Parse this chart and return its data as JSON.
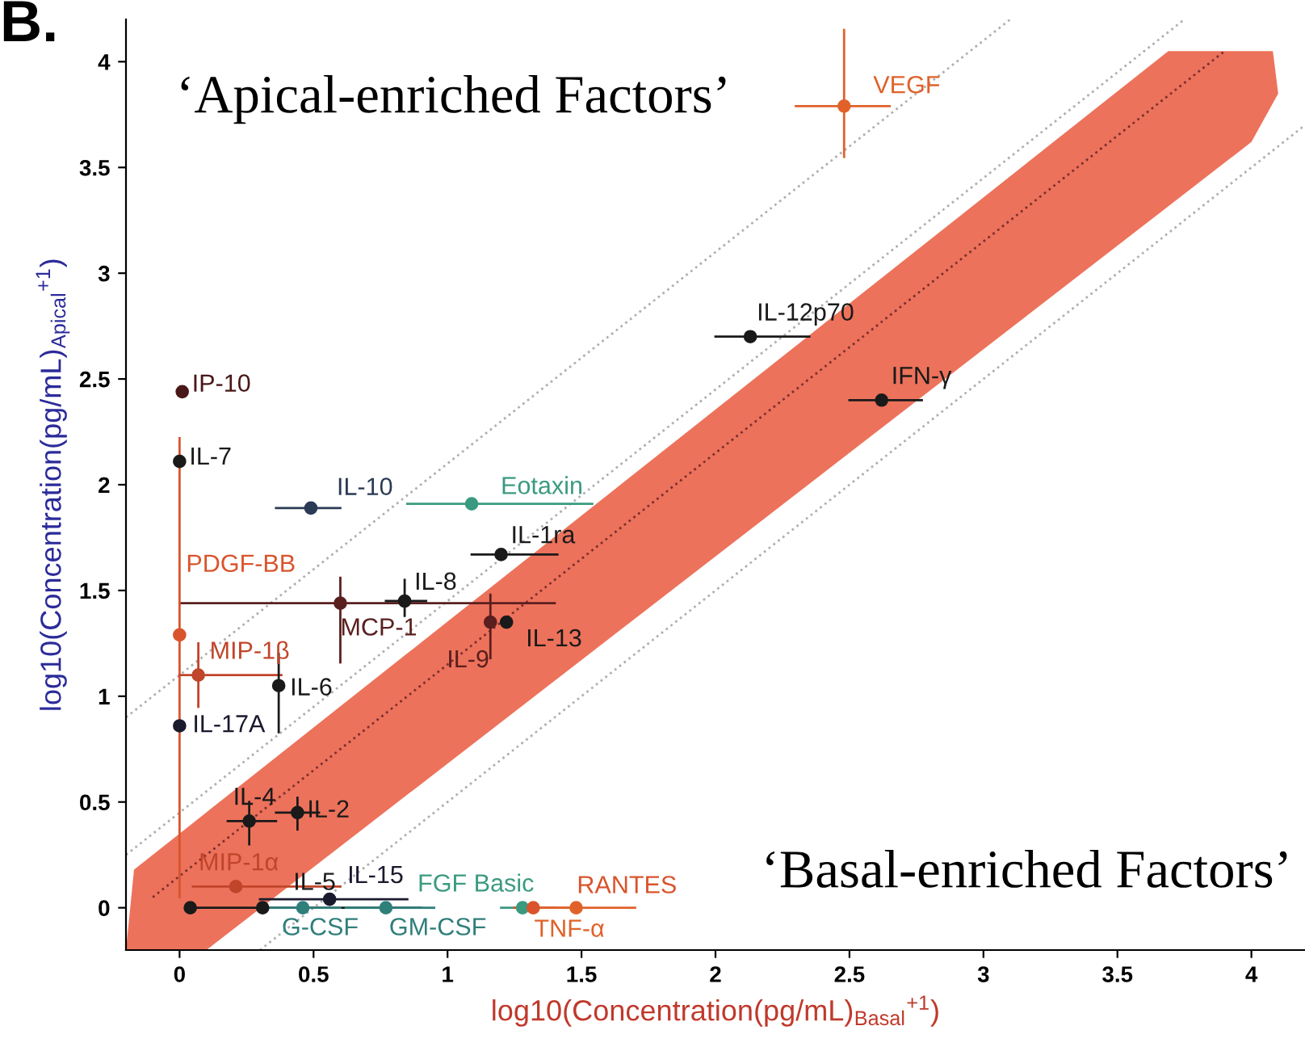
{
  "chart_data": {
    "type": "scatter",
    "xlabel": "log10(Concentration(pg/mL)$_{Basal}$$^{+1}$)",
    "ylabel": "log10(Concentration(pg/mL)$_{Apical}$$^{+1}$)",
    "xlim": [
      -0.2,
      4.2
    ],
    "ylim": [
      -0.2,
      4.2
    ],
    "xticks": [
      0,
      0.5,
      1,
      1.5,
      2,
      2.5,
      3,
      3.5,
      4
    ],
    "yticks": [
      0,
      0.5,
      1,
      1.5,
      2,
      2.5,
      3,
      3.5,
      4
    ],
    "grid": false,
    "legend": false,
    "series": [
      {
        "marker": "circle",
        "x": [
          0.01,
          0,
          0.49,
          1.09,
          1.2,
          0.84,
          0.6,
          1.16,
          1.22,
          0,
          0.07,
          0.37,
          0,
          0.26,
          0.44,
          0.21,
          0.31,
          0.56,
          0.46,
          0.77,
          1.28,
          1.32,
          1.48,
          2.13,
          2.62,
          2.48,
          0.04
        ],
        "values": [
          2.44,
          2.11,
          1.89,
          1.91,
          1.67,
          1.45,
          1.44,
          1.35,
          1.35,
          1.29,
          1.1,
          1.05,
          0.86,
          0.41,
          0.45,
          0.1,
          0,
          0.04,
          0,
          0,
          0,
          0,
          0,
          2.7,
          2.4,
          3.79,
          0
        ],
        "colors": [
          "#4a1818",
          "#1a1a1a",
          "#2b3a55",
          "#3a9a80",
          "#1a1a1a",
          "#1a1a1a",
          "#5a1f1f",
          "#5a1f1f",
          "#1a1a1a",
          "#d9542c",
          "#c0452a",
          "#1a1a1a",
          "#1a1a2e",
          "#1a1a1a",
          "#1a1a1a",
          "#c0452a",
          "#1a1a1a",
          "#1a1a2e",
          "#2f7f7a",
          "#2f7f7a",
          "#3a9a80",
          "#d9542c",
          "#e0622a",
          "#1a1a1a",
          "#1a1a1a",
          "#e0622a",
          "#1a1a1a"
        ],
        "errors": [
          null,
          null,
          null,
          null,
          null,
          [
            1.38,
            1.55
          ],
          [
            1.16,
            1.56
          ],
          [
            1.18,
            1.48
          ],
          null,
          [
            0.05,
            2.22
          ],
          [
            0.95,
            1.25
          ],
          [
            0.83,
            1.2
          ],
          null,
          [
            0.3,
            0.5
          ],
          [
            0.37,
            0.52
          ],
          null,
          null,
          null,
          null,
          null,
          null,
          null,
          null,
          null,
          null,
          [
            3.55,
            4.15
          ],
          null
        ],
        "xerrors": [
          null,
          null,
          [
            0.36,
            0.6
          ],
          [
            0.85,
            1.54
          ],
          [
            1.09,
            1.41
          ],
          [
            0.77,
            0.92
          ],
          [
            0,
            1.4
          ],
          null,
          null,
          null,
          [
            0,
            0.38
          ],
          null,
          null,
          [
            0.18,
            0.36
          ],
          [
            0.36,
            0.52
          ],
          [
            0.05,
            0.6
          ],
          [
            0.05,
            0.9
          ],
          [
            0.3,
            0.85
          ],
          [
            0.3,
            0.6
          ],
          [
            0.62,
            0.95
          ],
          [
            1.2,
            1.4
          ],
          [
            1.25,
            1.45
          ],
          [
            1.35,
            1.7
          ],
          [
            2.0,
            2.35
          ],
          [
            2.5,
            2.77
          ],
          [
            2.3,
            2.65
          ],
          null
        ]
      },
      {
        "type": "line",
        "color": "#b0b0b0",
        "line_style": "dotted",
        "marker": "none",
        "x": [
          -0.2,
          3.1
        ],
        "values": [
          0.9,
          4.2
        ]
      },
      {
        "type": "line",
        "color": "#b0b0b0",
        "line_style": "dotted",
        "marker": "none",
        "x": [
          -0.2,
          3.75
        ],
        "values": [
          0.25,
          4.2
        ]
      },
      {
        "type": "line",
        "color": "#7a3030",
        "line_style": "dotted",
        "marker": "none",
        "x": [
          -0.1,
          3.9
        ],
        "values": [
          0.05,
          4.05
        ]
      },
      {
        "type": "line",
        "color": "#b0b0b0",
        "line_style": "dotted",
        "marker": "none",
        "x": [
          0.3,
          4.2
        ],
        "values": [
          -0.2,
          3.7
        ]
      }
    ],
    "annotations": [
      {
        "text": "IP-10",
        "x": 0.01,
        "y": 2.44
      },
      {
        "text": "IL-7",
        "x": 0,
        "y": 2.11
      },
      {
        "text": "IL-10",
        "x": 0.49,
        "y": 1.89
      },
      {
        "text": "Eotaxin",
        "x": 1.09,
        "y": 1.91
      },
      {
        "text": "IL-1ra",
        "x": 1.2,
        "y": 1.67
      },
      {
        "text": "IL-8",
        "x": 0.84,
        "y": 1.45
      },
      {
        "text": "MCP-1",
        "x": 0.6,
        "y": 1.44
      },
      {
        "text": "IL-9",
        "x": 1.16,
        "y": 1.35
      },
      {
        "text": "IL-13",
        "x": 1.22,
        "y": 1.35
      },
      {
        "text": "PDGF-BB",
        "x": 0,
        "y": 1.29
      },
      {
        "text": "MIP-1β",
        "x": 0.07,
        "y": 1.1
      },
      {
        "text": "IL-6",
        "x": 0.37,
        "y": 1.05
      },
      {
        "text": "IL-17A",
        "x": 0,
        "y": 0.86
      },
      {
        "text": "IL-4",
        "x": 0.26,
        "y": 0.41
      },
      {
        "text": "IL-2",
        "x": 0.44,
        "y": 0.45
      },
      {
        "text": "MIP-1α",
        "x": 0.21,
        "y": 0.1
      },
      {
        "text": "IL-5",
        "x": 0.31,
        "y": 0
      },
      {
        "text": "IL-15",
        "x": 0.56,
        "y": 0.04
      },
      {
        "text": "G-CSF",
        "x": 0.46,
        "y": 0
      },
      {
        "text": "GM-CSF",
        "x": 0.77,
        "y": 0
      },
      {
        "text": "FGF Basic",
        "x": 1.28,
        "y": 0
      },
      {
        "text": "RANTES",
        "x": 1.32,
        "y": 0
      },
      {
        "text": "TNF-α",
        "x": 1.48,
        "y": 0
      },
      {
        "text": "IL-12p70",
        "x": 2.13,
        "y": 2.7
      },
      {
        "text": "IFN-γ",
        "x": 2.62,
        "y": 2.4
      },
      {
        "text": "VEGF",
        "x": 2.48,
        "y": 3.79
      },
      "‘Apical-enriched Factors’",
      "‘Basal-enriched Factors’",
      "B."
    ]
  }
}
